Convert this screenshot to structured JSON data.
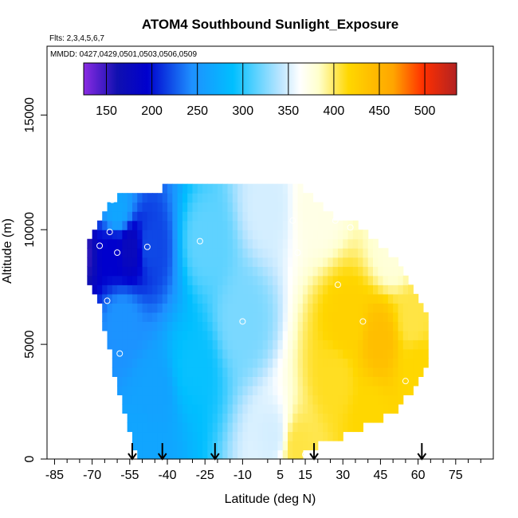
{
  "chart_data": {
    "type": "heatmap",
    "title": "ATOM4 Southbound Sunlight_Exposure",
    "flights_label": "Flts: 2,3,4,5,6,7",
    "dates_label": "MMDD: 0427,0429,0501,0503,0506,0509",
    "xlabel": "Latitude (deg N)",
    "ylabel": "Altitude (m)",
    "xlim": [
      -88,
      90
    ],
    "ylim": [
      0,
      18000
    ],
    "x_ticks": [
      -85,
      -70,
      -55,
      -40,
      -25,
      -10,
      5,
      15,
      30,
      45,
      60,
      75
    ],
    "x_minor_ticks": [
      -80,
      -75,
      -65,
      -60,
      -50,
      -45,
      -35,
      -30,
      -20,
      -15,
      0,
      10,
      20,
      25,
      35,
      40,
      50,
      55,
      65,
      70,
      80,
      85
    ],
    "y_ticks": [
      0,
      5000,
      10000,
      15000
    ],
    "y_tick_labels": [
      "0",
      "5000",
      "10000",
      "15000"
    ],
    "colorbar": {
      "range": [
        125,
        535
      ],
      "ticks": [
        150,
        200,
        250,
        300,
        350,
        400,
        450,
        500
      ],
      "tick_labels": [
        "150",
        "200",
        "250",
        "300",
        "350",
        "400",
        "450",
        "500"
      ]
    },
    "arrows_lat": [
      -54,
      -42,
      -21,
      18.5,
      61.5
    ],
    "envelope": {
      "lat": [
        -72,
        -67,
        -65,
        -62,
        -58,
        -55,
        -52,
        -50,
        -47,
        -38,
        -33,
        -28,
        -22,
        -18,
        -12,
        -5,
        5,
        12,
        15,
        25,
        35,
        40,
        50,
        55,
        60,
        63
      ],
      "top": [
        9400,
        10200,
        10800,
        11300,
        11600,
        11600,
        11500,
        11400,
        11700,
        11900,
        11900,
        11900,
        11900,
        11900,
        12000,
        12000,
        12100,
        12000,
        11600,
        10600,
        10400,
        9800,
        8800,
        8000,
        7200,
        6400
      ],
      "bottom": [
        8000,
        7000,
        5500,
        4200,
        2600,
        1200,
        200,
        0,
        0,
        0,
        0,
        0,
        0,
        0,
        0,
        0,
        0,
        0,
        400,
        800,
        1200,
        1500,
        2000,
        2700,
        3200,
        4000
      ]
    },
    "field_anchors": [
      {
        "lat": -75,
        "alt": 9000,
        "value": 150
      },
      {
        "lat": -62,
        "alt": 9100,
        "value": 195
      },
      {
        "lat": -55,
        "alt": 9200,
        "value": 175
      },
      {
        "lat": -47,
        "alt": 9300,
        "value": 220
      },
      {
        "lat": -60,
        "alt": 10800,
        "value": 265
      },
      {
        "lat": -58,
        "alt": 6000,
        "value": 248
      },
      {
        "lat": -45,
        "alt": 3000,
        "value": 262
      },
      {
        "lat": -50,
        "alt": 500,
        "value": 265
      },
      {
        "lat": -30,
        "alt": 4000,
        "value": 292
      },
      {
        "lat": -25,
        "alt": 9500,
        "value": 315
      },
      {
        "lat": -10,
        "alt": 6000,
        "value": 322
      },
      {
        "lat": 0,
        "alt": 11000,
        "value": 345
      },
      {
        "lat": 2,
        "alt": 1000,
        "value": 345
      },
      {
        "lat": 12,
        "alt": 500,
        "value": 395
      },
      {
        "lat": 20,
        "alt": 11000,
        "value": 365
      },
      {
        "lat": 27,
        "alt": 3500,
        "value": 400
      },
      {
        "lat": 32,
        "alt": 6000,
        "value": 410
      },
      {
        "lat": 45,
        "alt": 5200,
        "value": 430
      },
      {
        "lat": 40,
        "alt": 1800,
        "value": 405
      },
      {
        "lat": 50,
        "alt": 9000,
        "value": 370
      },
      {
        "lat": 58,
        "alt": 6000,
        "value": 395
      },
      {
        "lat": 60,
        "alt": 4200,
        "value": 405
      }
    ],
    "observations": [
      {
        "lat": -75,
        "alt": 9300
      },
      {
        "lat": -67,
        "alt": 9300
      },
      {
        "lat": -63,
        "alt": 9900
      },
      {
        "lat": -60,
        "alt": 9000
      },
      {
        "lat": -48,
        "alt": 9250
      },
      {
        "lat": -62,
        "alt": 11300
      },
      {
        "lat": -64,
        "alt": 6900
      },
      {
        "lat": -59,
        "alt": 4600
      },
      {
        "lat": -27,
        "alt": 9500
      },
      {
        "lat": -10,
        "alt": 6000
      },
      {
        "lat": 10,
        "alt": 10400
      },
      {
        "lat": 12,
        "alt": 9000
      },
      {
        "lat": 27,
        "alt": 10400
      },
      {
        "lat": 33,
        "alt": 10100
      },
      {
        "lat": 28,
        "alt": 7600
      },
      {
        "lat": 38,
        "alt": 6000
      },
      {
        "lat": 15,
        "alt": 200
      },
      {
        "lat": 55,
        "alt": 3400
      }
    ]
  }
}
